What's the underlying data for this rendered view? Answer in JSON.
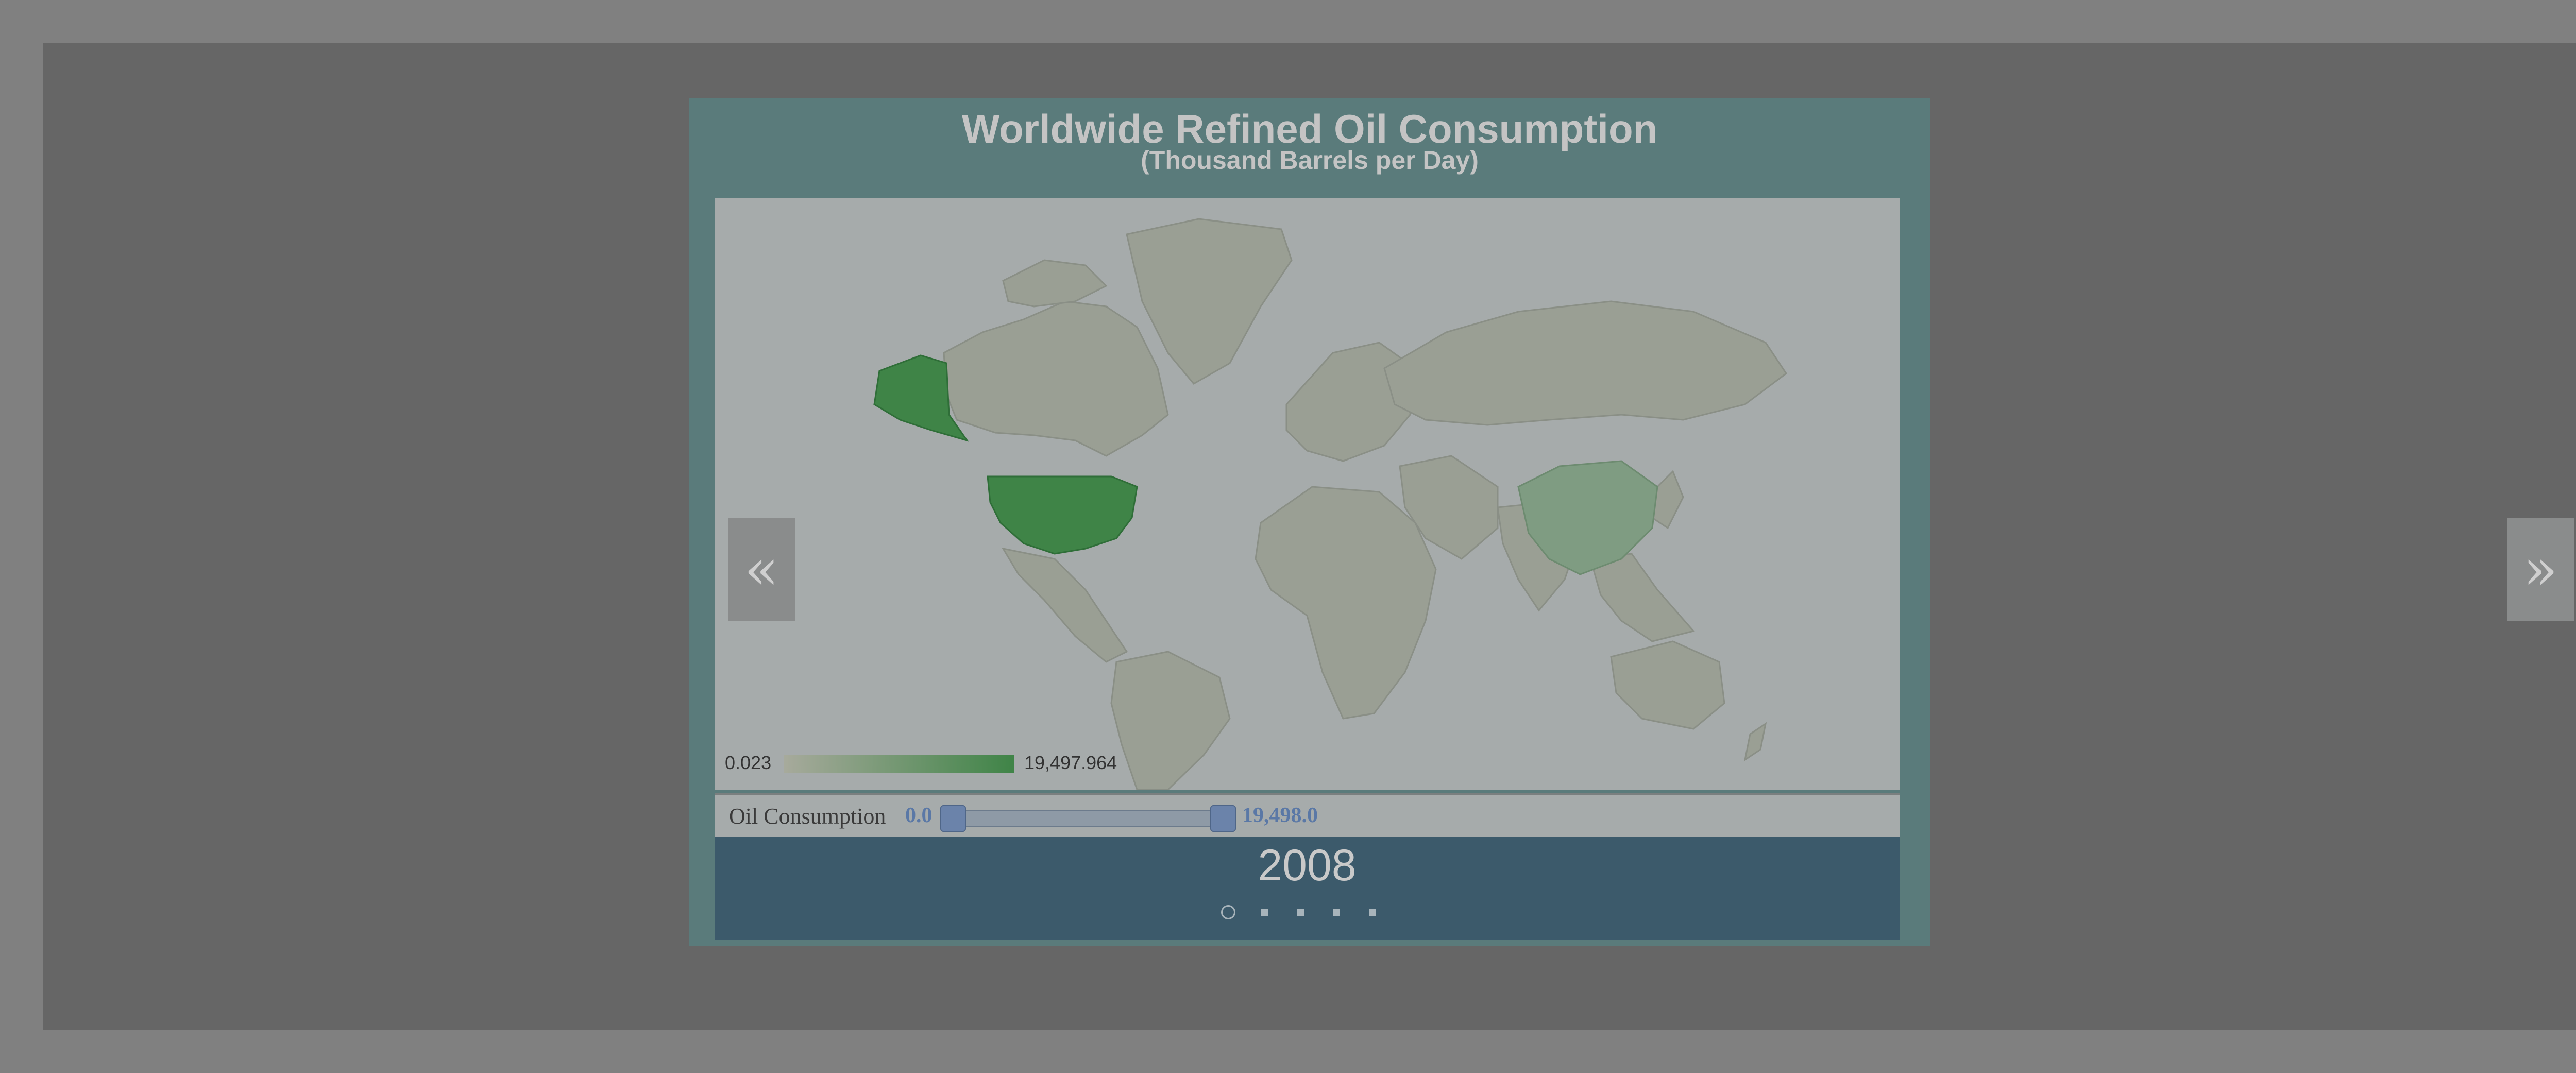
{
  "title": "Worldwide Refined Oil Consumption",
  "subtitle": "(Thousand Barrels per Day)",
  "nav": {
    "prev_label": "«",
    "next_label": "»"
  },
  "legend": {
    "min_label": "0.023",
    "max_label": "19,497.964",
    "color_low": "#a7aa9c",
    "color_high": "#3f8447"
  },
  "filter": {
    "label": "Oil Consumption",
    "min_value": "0.0",
    "max_value": "19,498.0",
    "accent_color": "#5a78a6"
  },
  "timeline": {
    "year": "2008",
    "step_count": 5,
    "current_index": 0
  },
  "map": {
    "ocean_color": "#a6abab",
    "land_color": "#9a9f94",
    "highlighted": [
      {
        "region": "United States",
        "color": "#3f8447"
      },
      {
        "region": "China",
        "color": "#7f9c82"
      }
    ]
  }
}
